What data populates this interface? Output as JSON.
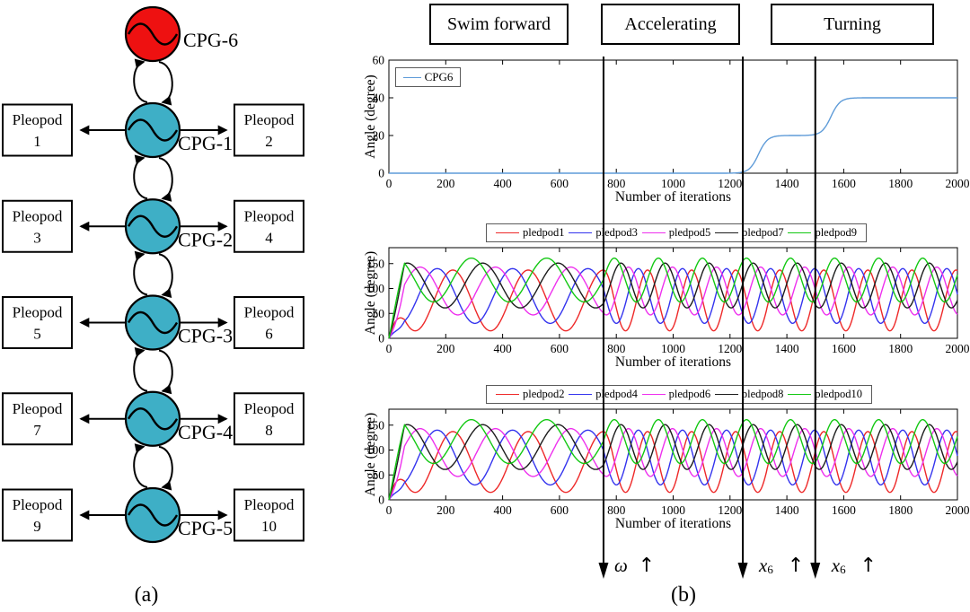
{
  "panel_a": {
    "label": "(a)",
    "head_node": {
      "label": "CPG-6",
      "fill": "#ee1111"
    },
    "node_fill": "#3eafc6",
    "rows": [
      {
        "cpg_label": "CPG-1",
        "left_box": {
          "line1": "Pleopod",
          "line2": "1"
        },
        "right_box": {
          "line1": "Pleopod",
          "line2": "2"
        }
      },
      {
        "cpg_label": "CPG-2",
        "left_box": {
          "line1": "Pleopod",
          "line2": "3"
        },
        "right_box": {
          "line1": "Pleopod",
          "line2": "4"
        }
      },
      {
        "cpg_label": "CPG-3",
        "left_box": {
          "line1": "Pleopod",
          "line2": "5"
        },
        "right_box": {
          "line1": "Pleopod",
          "line2": "6"
        }
      },
      {
        "cpg_label": "CPG-4",
        "left_box": {
          "line1": "Pleopod",
          "line2": "7"
        },
        "right_box": {
          "line1": "Pleopod",
          "line2": "8"
        }
      },
      {
        "cpg_label": "CPG-5",
        "left_box": {
          "line1": "Pleopod",
          "line2": "9"
        },
        "right_box": {
          "line1": "Pleopod",
          "line2": "10"
        }
      }
    ]
  },
  "panel_b": {
    "label": "(b)",
    "phase_boxes": [
      "Swim forward",
      "Accelerating",
      "Turning"
    ],
    "event_markers": [
      {
        "x": 755,
        "symbol": "ω",
        "subscript": "",
        "arrow": "↑"
      },
      {
        "x": 1245,
        "symbol": "x",
        "subscript": "6",
        "arrow": "↑"
      },
      {
        "x": 1500,
        "symbol": "x",
        "subscript": "6",
        "arrow": "↑"
      }
    ]
  },
  "chart_data": [
    {
      "id": "cpg6-angle",
      "type": "line",
      "xlabel": "Number of iterations",
      "ylabel": "Angle (degree)",
      "xlim": [
        0,
        2000
      ],
      "ylim": [
        0,
        60
      ],
      "xticks": [
        0,
        200,
        400,
        600,
        800,
        1000,
        1200,
        1400,
        1600,
        1800,
        2000
      ],
      "yticks": [
        0,
        20,
        40,
        60
      ],
      "legend_position": "top-left-inside",
      "grid": false,
      "series": [
        {
          "label": "CPG6",
          "color": "#5e9bd8",
          "model": "double_sigmoid",
          "baseline": 0,
          "rise_width": 16,
          "steps": [
            {
              "center": 1300,
              "amplitude": 20
            },
            {
              "center": 1555,
              "amplitude": 20
            }
          ],
          "key_points": [
            [
              0,
              0
            ],
            [
              1250,
              0
            ],
            [
              1400,
              20
            ],
            [
              1500,
              20
            ],
            [
              1650,
              40
            ],
            [
              2000,
              40
            ]
          ]
        }
      ]
    },
    {
      "id": "odd-pleopod-angles",
      "type": "line",
      "xlabel": "Number of iterations",
      "ylabel": "Angle (degree)",
      "xlim": [
        0,
        2000
      ],
      "ylim": [
        0,
        182
      ],
      "xticks": [
        0,
        200,
        400,
        600,
        800,
        1000,
        1200,
        1400,
        1600,
        1800,
        2000
      ],
      "yticks": [
        0,
        50,
        100,
        150
      ],
      "legend_position": "above",
      "grid": false,
      "oscillation": {
        "period_initial": 265,
        "period_final": 155,
        "change_at": 755,
        "ramp": 55
      },
      "series": [
        {
          "label": "pledpod1",
          "color": "#ee2929",
          "model": "oscillator",
          "mean": 76,
          "amp": 61,
          "peak_t": 225
        },
        {
          "label": "pledpod3",
          "color": "#3434ee",
          "model": "oscillator",
          "mean": 85,
          "amp": 55,
          "peak_t": 170
        },
        {
          "label": "pledpod5",
          "color": "#ee30ee",
          "model": "oscillator",
          "mean": 95,
          "amp": 48,
          "peak_t": 110
        },
        {
          "label": "pledpod7",
          "color": "#1c1c1c",
          "model": "oscillator",
          "mean": 106,
          "amp": 45,
          "peak_t": 65
        },
        {
          "label": "pledpod9",
          "color": "#12c812",
          "model": "oscillator",
          "mean": 117,
          "amp": 44,
          "peak_t": 25
        }
      ]
    },
    {
      "id": "even-pleopod-angles",
      "type": "line",
      "xlabel": "Number of iterations",
      "ylabel": "Angle (degree)",
      "xlim": [
        0,
        2000
      ],
      "ylim": [
        0,
        182
      ],
      "xticks": [
        0,
        200,
        400,
        600,
        800,
        1000,
        1200,
        1400,
        1600,
        1800,
        2000
      ],
      "yticks": [
        0,
        50,
        100,
        150
      ],
      "legend_position": "above",
      "grid": false,
      "oscillation": {
        "period_initial": 265,
        "period_final": 155,
        "change_at": 755,
        "ramp": 55
      },
      "series": [
        {
          "label": "pledpod2",
          "color": "#ee2929",
          "model": "oscillator",
          "mean": 76,
          "amp": 61,
          "peak_t": 225
        },
        {
          "label": "pledpod4",
          "color": "#3434ee",
          "model": "oscillator",
          "mean": 85,
          "amp": 55,
          "peak_t": 170
        },
        {
          "label": "pledpod6",
          "color": "#ee30ee",
          "model": "oscillator",
          "mean": 95,
          "amp": 48,
          "peak_t": 110
        },
        {
          "label": "pledpod8",
          "color": "#1c1c1c",
          "model": "oscillator",
          "mean": 106,
          "amp": 45,
          "peak_t": 65
        },
        {
          "label": "pledpod10",
          "color": "#12c812",
          "model": "oscillator",
          "mean": 117,
          "amp": 44,
          "peak_t": 25
        }
      ]
    }
  ]
}
